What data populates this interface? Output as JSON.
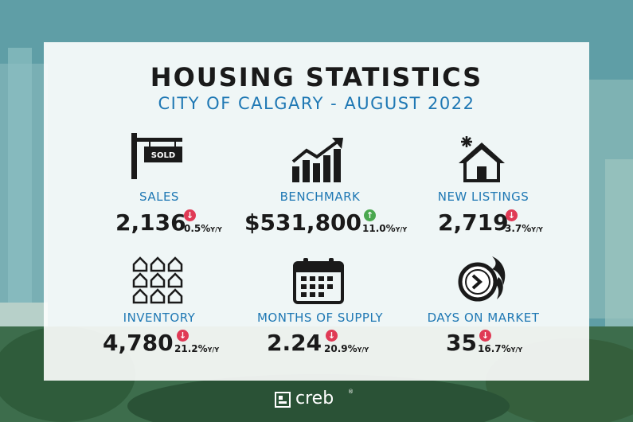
{
  "title": "HOUSING STATISTICS",
  "subtitle": "CITY OF CALGARY - AUGUST 2022",
  "colors": {
    "accent": "#1f78b4",
    "down": "#e03a55",
    "up": "#4aa84f",
    "text": "#1a1a1a"
  },
  "stats": [
    {
      "label": "SALES",
      "value": "2,136",
      "direction": "down",
      "change": "0.5%",
      "suffix": "Y/Y",
      "icon": "sold-sign-icon"
    },
    {
      "label": "BENCHMARK",
      "value": "$531,800",
      "direction": "up",
      "change": "11.0%",
      "suffix": "Y/Y",
      "icon": "trending-up-chart-icon"
    },
    {
      "label": "NEW LISTINGS",
      "value": "2,719",
      "direction": "down",
      "change": "3.7%",
      "suffix": "Y/Y",
      "icon": "new-house-icon"
    },
    {
      "label": "INVENTORY",
      "value": "4,780",
      "direction": "down",
      "change": "21.2%",
      "suffix": "Y/Y",
      "icon": "houses-grid-icon"
    },
    {
      "label": "MONTHS OF SUPPLY",
      "value": "2.24",
      "direction": "down",
      "change": "20.9%",
      "suffix": "Y/Y",
      "icon": "calendar-icon"
    },
    {
      "label": "DAYS ON MARKET",
      "value": "35",
      "direction": "down",
      "change": "16.7%",
      "suffix": "Y/Y",
      "icon": "fast-clock-icon"
    }
  ],
  "sold_sign_text": "SOLD",
  "footer": {
    "brand": "creb",
    "registered": "®"
  }
}
